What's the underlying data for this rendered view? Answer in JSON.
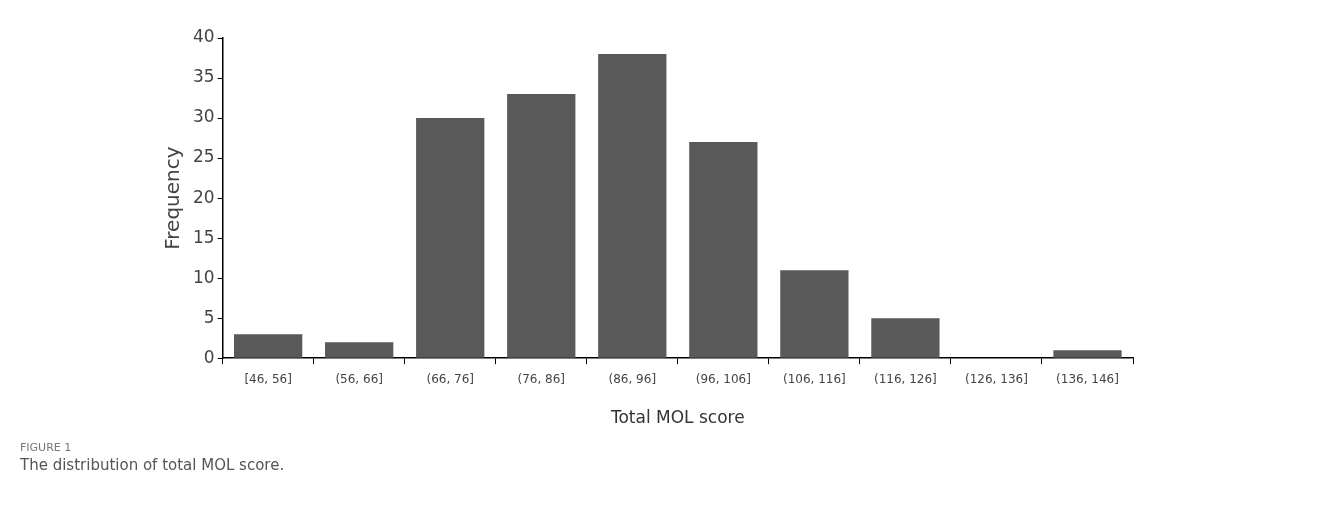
{
  "chart_data": {
    "type": "bar",
    "xlabel": "Total MOL score",
    "ylabel": "Frequency",
    "categories": [
      "[46, 56]",
      "(56, 66]",
      "(66, 76]",
      "(76, 86]",
      "(86, 96]",
      "(96, 106]",
      "(106, 116]",
      "(116, 126]",
      "(126, 136]",
      "(136, 146]"
    ],
    "values": [
      3,
      2,
      30,
      33,
      38,
      27,
      11,
      5,
      0,
      1
    ],
    "color": "#595959",
    "ylim": [
      0,
      40
    ],
    "yticks": [
      0,
      5,
      10,
      15,
      20,
      25,
      30,
      35,
      40
    ],
    "grid": false,
    "legend": false,
    "annotations": [
      "FIGURE 1",
      "The distribution of total MOL score."
    ]
  }
}
